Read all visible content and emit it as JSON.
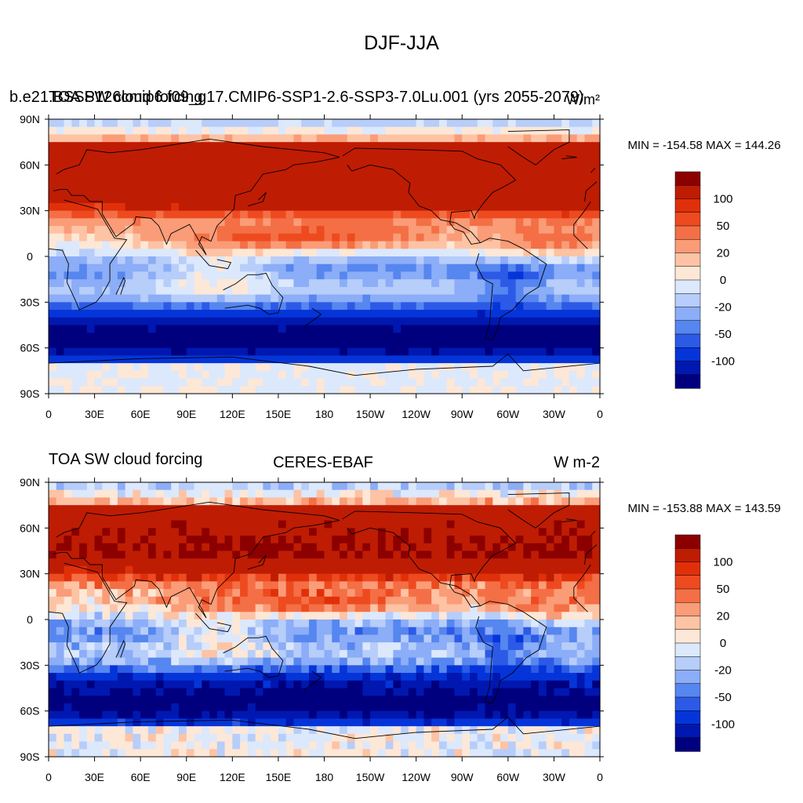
{
  "figure": {
    "title": "DJF-JJA"
  },
  "palette": [
    "#00007f",
    "#0018b0",
    "#0535d9",
    "#2c5ae6",
    "#5686ef",
    "#8cadf7",
    "#b7cdfa",
    "#dce8fc",
    "#fde7d6",
    "#fdc3a4",
    "#fa9c77",
    "#f46f45",
    "#ee4a20",
    "#e0300a",
    "#bf1c04",
    "#8c0000"
  ],
  "colorbar_labels": [
    "100",
    "50",
    "20",
    "0",
    "-20",
    "-50",
    "-100"
  ],
  "lat_ticks": [
    "90N",
    "60N",
    "30N",
    "0",
    "30S",
    "60S",
    "90S"
  ],
  "lon_ticks": [
    "0",
    "30E",
    "60E",
    "90E",
    "120E",
    "150E",
    "180",
    "150W",
    "120W",
    "90W",
    "60W",
    "30W",
    "0"
  ],
  "panels": [
    {
      "left_title_a": "b.e21.BSSP126cmip6.f09_g17.CMIP6-SSP1-2.6-SSP3-7.0Lu.001 (yrs 2055-2079)",
      "left_title_b": "TOA SW cloud forcing",
      "center_title": "",
      "right_title": "W/m²",
      "stats": "MIN = -154.58 MAX = 144.26"
    },
    {
      "left_title_a": "TOA SW cloud forcing",
      "left_title_b": "",
      "center_title": "CERES-EBAF",
      "right_title": "W m-2",
      "stats": "MIN = -153.88 MAX = 143.59"
    }
  ]
}
